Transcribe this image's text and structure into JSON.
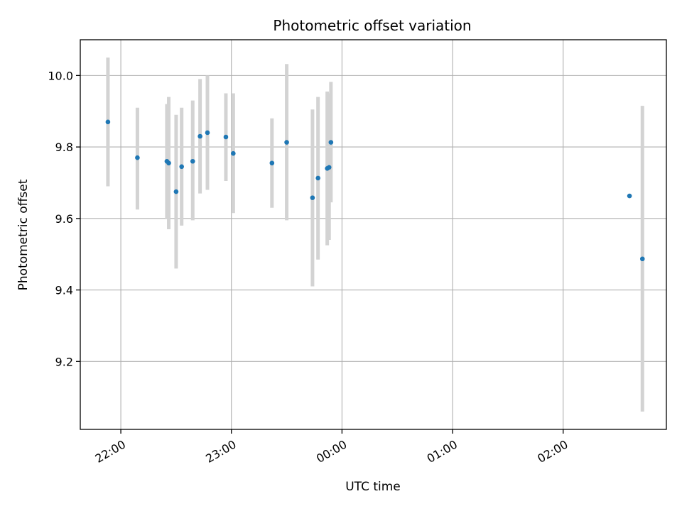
{
  "chart_data": {
    "type": "scatter",
    "title": "Photometric offset variation",
    "xlabel": "UTC time",
    "ylabel": "Photometric offset",
    "x_ticks": [
      "22:00",
      "23:00",
      "00:00",
      "01:00",
      "02:00"
    ],
    "y_ticks": [
      "9.2",
      "9.4",
      "9.6",
      "9.8",
      "10.0"
    ],
    "xlim": [
      "21:38",
      "02:56"
    ],
    "ylim": [
      9.01,
      10.1
    ],
    "grid": true,
    "legend": false,
    "point_color": "#1f77b4",
    "errorbar_color": "#d3d3d3",
    "series": [
      {
        "points": [
          {
            "x": "21:53",
            "y": 9.87,
            "lo": 9.69,
            "hi": 10.05
          },
          {
            "x": "22:09",
            "y": 9.77,
            "lo": 9.625,
            "hi": 9.91
          },
          {
            "x": "22:25",
            "y": 9.76,
            "lo": 9.6,
            "hi": 9.92
          },
          {
            "x": "22:26",
            "y": 9.755,
            "lo": 9.57,
            "hi": 9.94
          },
          {
            "x": "22:30",
            "y": 9.675,
            "lo": 9.46,
            "hi": 9.89
          },
          {
            "x": "22:33",
            "y": 9.745,
            "lo": 9.58,
            "hi": 9.91
          },
          {
            "x": "22:39",
            "y": 9.76,
            "lo": 9.595,
            "hi": 9.93
          },
          {
            "x": "22:43",
            "y": 9.83,
            "lo": 9.67,
            "hi": 9.99
          },
          {
            "x": "22:47",
            "y": 9.84,
            "lo": 9.68,
            "hi": 10.0
          },
          {
            "x": "22:57",
            "y": 9.828,
            "lo": 9.705,
            "hi": 9.95
          },
          {
            "x": "23:01",
            "y": 9.782,
            "lo": 9.615,
            "hi": 9.95
          },
          {
            "x": "23:22",
            "y": 9.755,
            "lo": 9.63,
            "hi": 9.88
          },
          {
            "x": "23:30",
            "y": 9.813,
            "lo": 9.595,
            "hi": 10.032
          },
          {
            "x": "23:44",
            "y": 9.658,
            "lo": 9.41,
            "hi": 9.905
          },
          {
            "x": "23:47",
            "y": 9.713,
            "lo": 9.485,
            "hi": 9.94
          },
          {
            "x": "23:52",
            "y": 9.74,
            "lo": 9.525,
            "hi": 9.955
          },
          {
            "x": "23:53",
            "y": 9.743,
            "lo": 9.54,
            "hi": 9.95
          },
          {
            "x": "23:54",
            "y": 9.813,
            "lo": 9.645,
            "hi": 9.982
          },
          {
            "x": "02:36",
            "y": 9.663,
            "lo": 9.663,
            "hi": 9.663
          },
          {
            "x": "02:43",
            "y": 9.487,
            "lo": 9.06,
            "hi": 9.915
          }
        ]
      }
    ]
  }
}
